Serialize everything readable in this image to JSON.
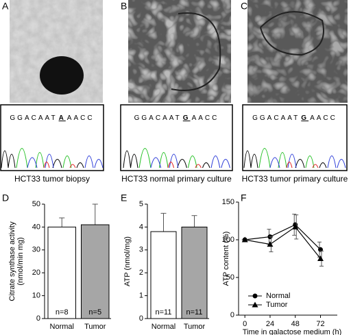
{
  "panels": [
    {
      "label": "A",
      "sequence": {
        "before": "GGACAAT",
        "base": "A",
        "after": "AACC"
      },
      "caption": "HCT33 tumor biopsy"
    },
    {
      "label": "B",
      "sequence": {
        "before": "GGACAAT",
        "base": "G",
        "after": "AACC"
      },
      "caption": "HCT33 normal primary culture"
    },
    {
      "label": "C",
      "sequence": {
        "before": "GGACAAT",
        "base": "G",
        "after": "AACC"
      },
      "caption": "HCT33 tumor primary culture"
    }
  ],
  "chart_data": [
    {
      "type": "bar",
      "label": "D",
      "ylabel": "Citrate synthase activity (nmol/min mg)",
      "categories": [
        "Normal",
        "Tumor"
      ],
      "values": [
        40,
        41
      ],
      "errors": [
        4,
        9
      ],
      "colors": [
        "#ffffff",
        "#a6a6a6"
      ],
      "annotations": [
        "n=8",
        "n=5"
      ],
      "ylim": [
        0,
        50
      ],
      "yticks": [
        0,
        10,
        20,
        30,
        40,
        50
      ]
    },
    {
      "type": "bar",
      "label": "E",
      "ylabel": "ATP (nmol/mg)",
      "categories": [
        "Normal",
        "Tumor"
      ],
      "values": [
        3.8,
        4.0
      ],
      "errors": [
        0.8,
        0.5
      ],
      "colors": [
        "#ffffff",
        "#a6a6a6"
      ],
      "annotations": [
        "n=11",
        "n=11"
      ],
      "ylim": [
        0,
        5
      ],
      "yticks": [
        0,
        1,
        2,
        3,
        4,
        5
      ]
    },
    {
      "type": "line",
      "label": "F",
      "xlabel": "Time in galactose medium (h)",
      "ylabel": "ATP content (%)",
      "x": [
        0,
        24,
        48,
        72
      ],
      "series": [
        {
          "name": "Normal",
          "color": "#000000",
          "marker": "circle",
          "values": [
            100,
            104,
            120,
            87
          ],
          "errors": [
            0,
            10,
            14,
            10
          ]
        },
        {
          "name": "Tumor",
          "color": "#000000",
          "marker": "triangle",
          "values": [
            100,
            94,
            117,
            75
          ],
          "errors": [
            0,
            10,
            16,
            10
          ]
        }
      ],
      "xlim": [
        -6,
        88
      ],
      "xticks": [
        0,
        24,
        48,
        72
      ],
      "ylim": [
        0,
        150
      ],
      "yticks": [
        0,
        50,
        100,
        150
      ],
      "legend": "lower-left"
    }
  ]
}
